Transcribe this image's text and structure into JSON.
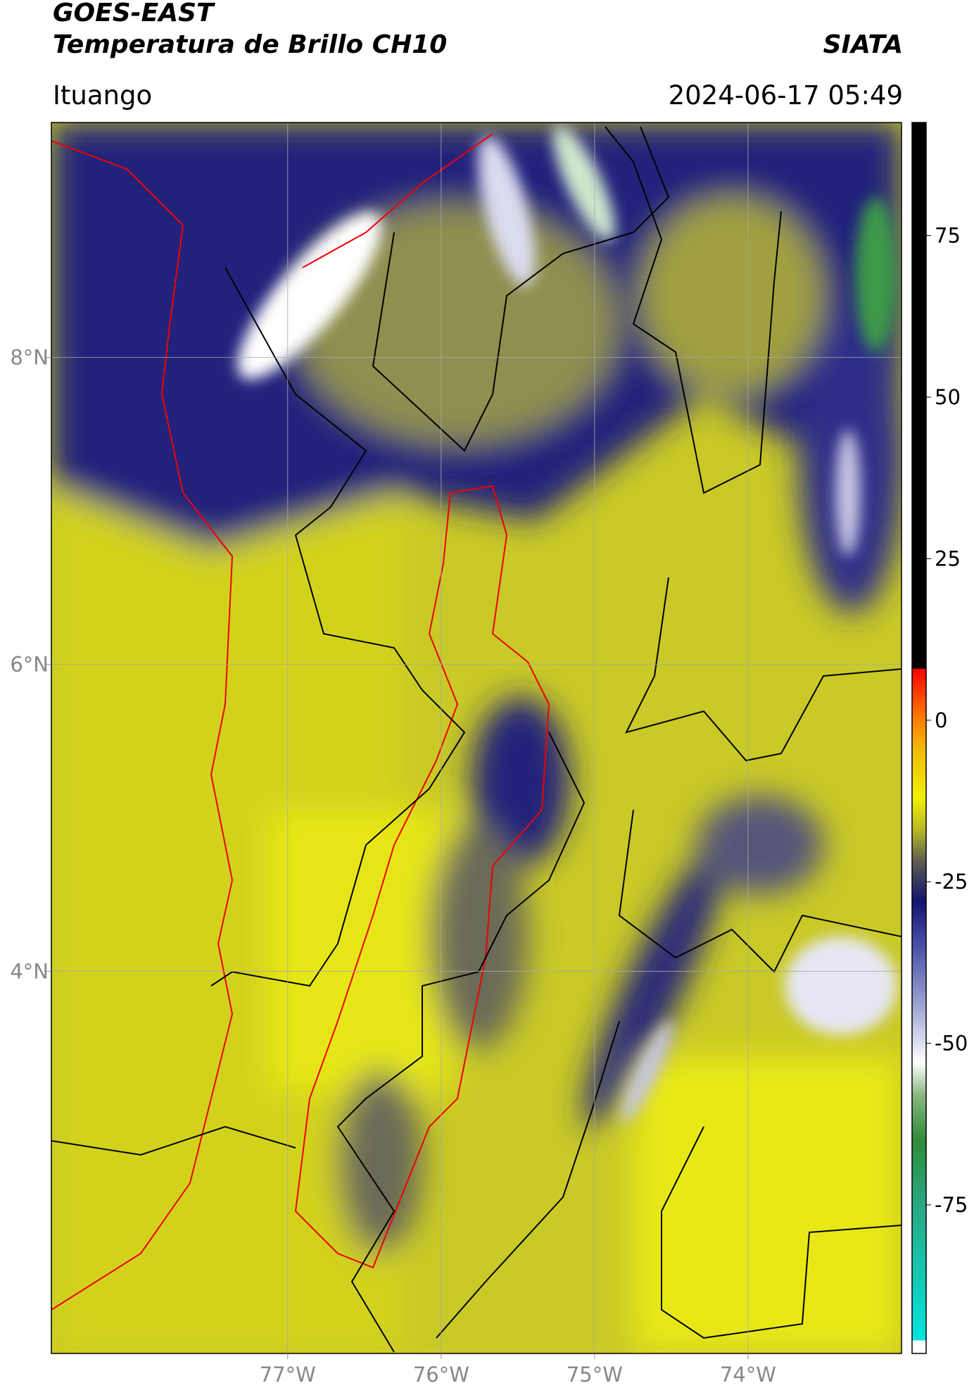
{
  "header": {
    "title": "GOES-EAST",
    "subtitle": "Temperatura de Brillo CH10",
    "source": "SIATA",
    "location": "Ituango",
    "datetime": "2024-06-17 05:49"
  },
  "map": {
    "xlim": [
      -78.54,
      -73.0
    ],
    "ylim": [
      1.51,
      9.53
    ],
    "xticks": [
      {
        "value": -77,
        "label": "77°W"
      },
      {
        "value": -76,
        "label": "76°W"
      },
      {
        "value": -75,
        "label": "75°W"
      },
      {
        "value": -74,
        "label": "74°W"
      }
    ],
    "yticks": [
      {
        "value": 8,
        "label": "8°N"
      },
      {
        "value": 6,
        "label": "6°N"
      },
      {
        "value": 4,
        "label": "4°N"
      }
    ],
    "grid": true
  },
  "colorbar": {
    "lim": [
      -98,
      92.5
    ],
    "ticks": [
      75,
      50,
      25,
      0,
      -25,
      -50,
      -75
    ],
    "stops": [
      {
        "value": -98,
        "color": "#ffffff"
      },
      {
        "value": -96,
        "color": "#ffffff"
      },
      {
        "value": -96,
        "color": "#00e5e0"
      },
      {
        "value": -75,
        "color": "#2aa882"
      },
      {
        "value": -65,
        "color": "#2e8b3a"
      },
      {
        "value": -58,
        "color": "#8ab880"
      },
      {
        "value": -53,
        "color": "#ffffff"
      },
      {
        "value": -45,
        "color": "#a6acd6"
      },
      {
        "value": -35,
        "color": "#4a50a8"
      },
      {
        "value": -28,
        "color": "#14146e"
      },
      {
        "value": -22,
        "color": "#5a5a50"
      },
      {
        "value": -17,
        "color": "#b7b728"
      },
      {
        "value": -12,
        "color": "#f0f000"
      },
      {
        "value": -5,
        "color": "#f0c000"
      },
      {
        "value": 0,
        "color": "#ff8000"
      },
      {
        "value": 8,
        "color": "#ff0000"
      },
      {
        "value": 8,
        "color": "#000000"
      },
      {
        "value": 92.5,
        "color": "#000000"
      }
    ]
  }
}
